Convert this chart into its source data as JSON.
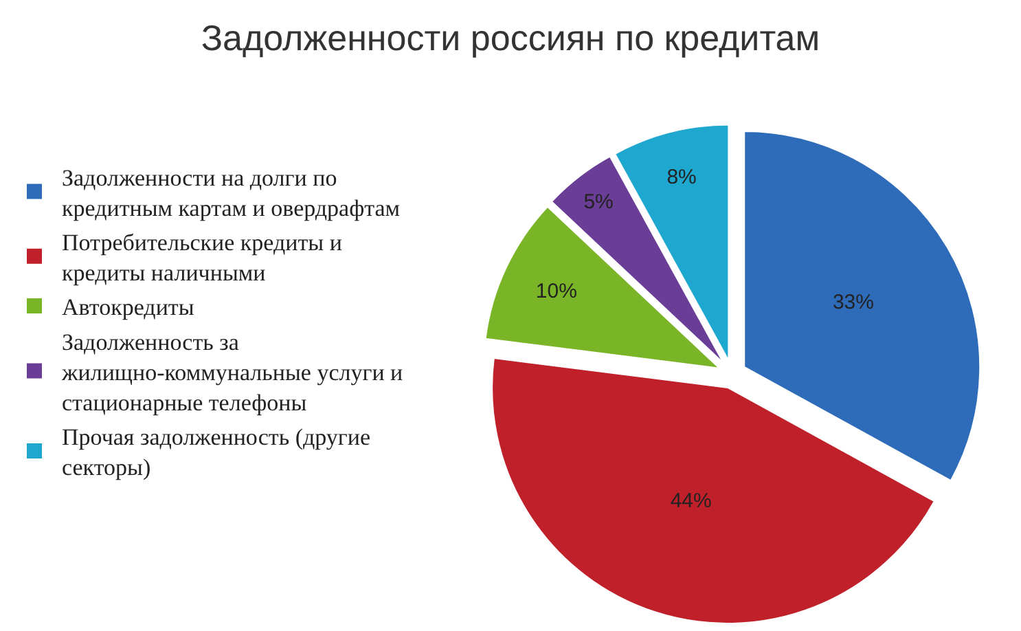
{
  "chart_data": {
    "type": "pie",
    "title": "Задолженности россиян по кредитам",
    "categories": [
      "Задолженности на долги по кредитным картам и овердрафтам",
      "Потребительские кредиты и кредиты наличными",
      "Автокредиты",
      "Задолженность за жилищно-коммунальные услуги и стационарные телефоны",
      "Прочая задолженность (другие секторы)"
    ],
    "values": [
      33,
      44,
      10,
      5,
      8
    ],
    "value_labels": [
      "33%",
      "44%",
      "10%",
      "5%",
      "8%"
    ],
    "colors": [
      "#2e6bb8",
      "#c0202a",
      "#7ab527",
      "#6a3d96",
      "#1fa8cf"
    ],
    "legend": "left"
  }
}
